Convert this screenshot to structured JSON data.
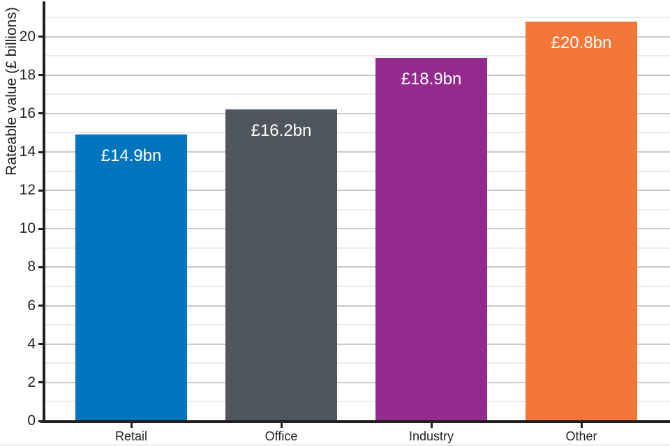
{
  "chart_data": {
    "type": "bar",
    "title": "",
    "xlabel": "",
    "ylabel": "Rateable value (£ billions)",
    "categories": [
      "Retail",
      "Office",
      "Industry",
      "Other"
    ],
    "values": [
      14.9,
      16.2,
      18.9,
      20.8
    ],
    "bar_labels": [
      "£14.9bn",
      "£16.2bn",
      "£18.9bn",
      "£20.8bn"
    ],
    "bar_colors": [
      "#0074BD",
      "#50565D",
      "#932A8D",
      "#F4773A"
    ],
    "ylim": [
      0,
      21.8
    ],
    "ytick_step": 2,
    "minor_grid_step": 1,
    "ytick_labels": [
      "0",
      "2",
      "4",
      "6",
      "8",
      "10",
      "12",
      "14",
      "16",
      "18",
      "20"
    ],
    "grid": "horizontal-major-and-minor",
    "legend": "none",
    "value_label_position": "inside-top",
    "value_label_color": "#ffffff"
  },
  "colors": {
    "background": "#ffffff",
    "axis": "#231f20",
    "grid_major": "#c9c9c9",
    "grid_minor": "#ebebeb",
    "tick_text": "#231f20",
    "bar_label_text": "#ffffff",
    "bottom_edge": "#f1f1f1"
  }
}
